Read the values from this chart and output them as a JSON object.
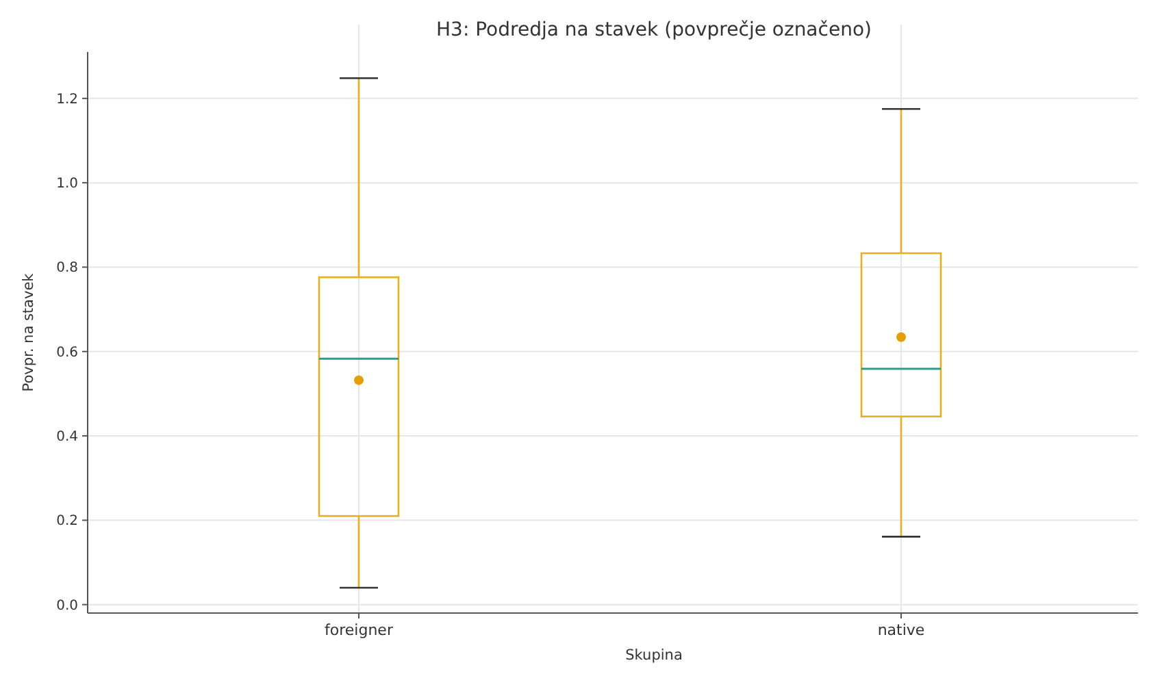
{
  "chart_data": {
    "type": "box",
    "title": "H3: Podredja na stavek (povprečje označeno)",
    "xlabel": "Skupina",
    "ylabel": "Povpr. na stavek",
    "categories": [
      "foreigner",
      "native"
    ],
    "series": [
      {
        "color": "#e8b020",
        "boxes": [
          {
            "low": 0.04,
            "q1": 0.21,
            "median": 0.583,
            "q3": 0.776,
            "high": 1.248,
            "mean": 0.532
          },
          {
            "low": 0.161,
            "q1": 0.446,
            "median": 0.559,
            "q3": 0.833,
            "high": 1.175,
            "mean": 0.634
          }
        ]
      }
    ],
    "ylim": [
      -0.02,
      1.31
    ],
    "yticks": [
      {
        "value": 0,
        "label": "0.0"
      },
      0.2,
      0.4,
      0.6,
      0.8,
      {
        "value": 1,
        "label": "1.0"
      },
      1.2
    ],
    "grid": true
  }
}
